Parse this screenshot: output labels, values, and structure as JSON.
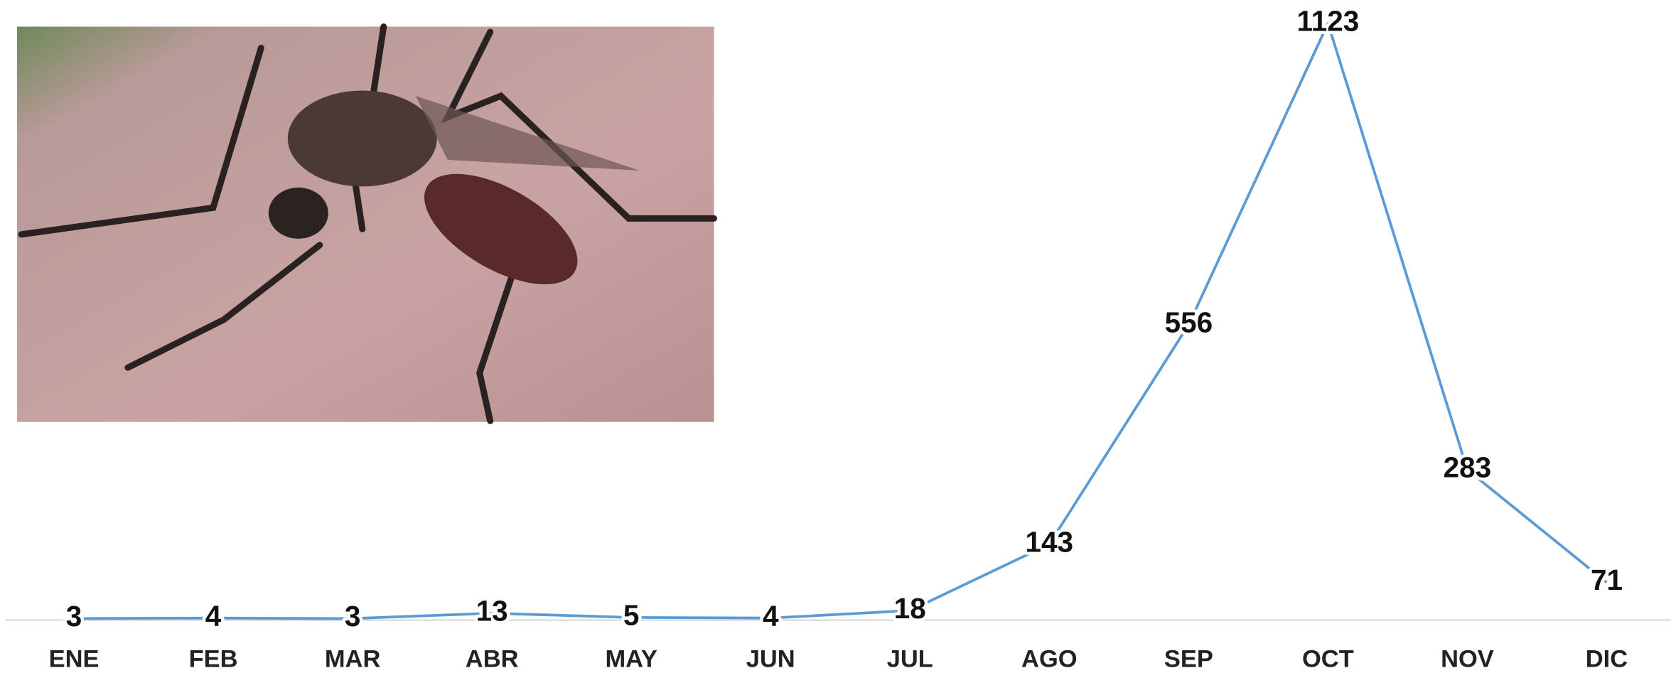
{
  "chart_data": {
    "type": "line",
    "categories": [
      "ENE",
      "FEB",
      "MAR",
      "ABR",
      "MAY",
      "JUN",
      "JUL",
      "AGO",
      "SEP",
      "OCT",
      "NOV",
      "DIC"
    ],
    "values": [
      3,
      4,
      3,
      13,
      5,
      4,
      18,
      143,
      556,
      1123,
      283,
      71
    ],
    "color": "#5b9bd5",
    "ylim": [
      0,
      1150
    ]
  }
}
